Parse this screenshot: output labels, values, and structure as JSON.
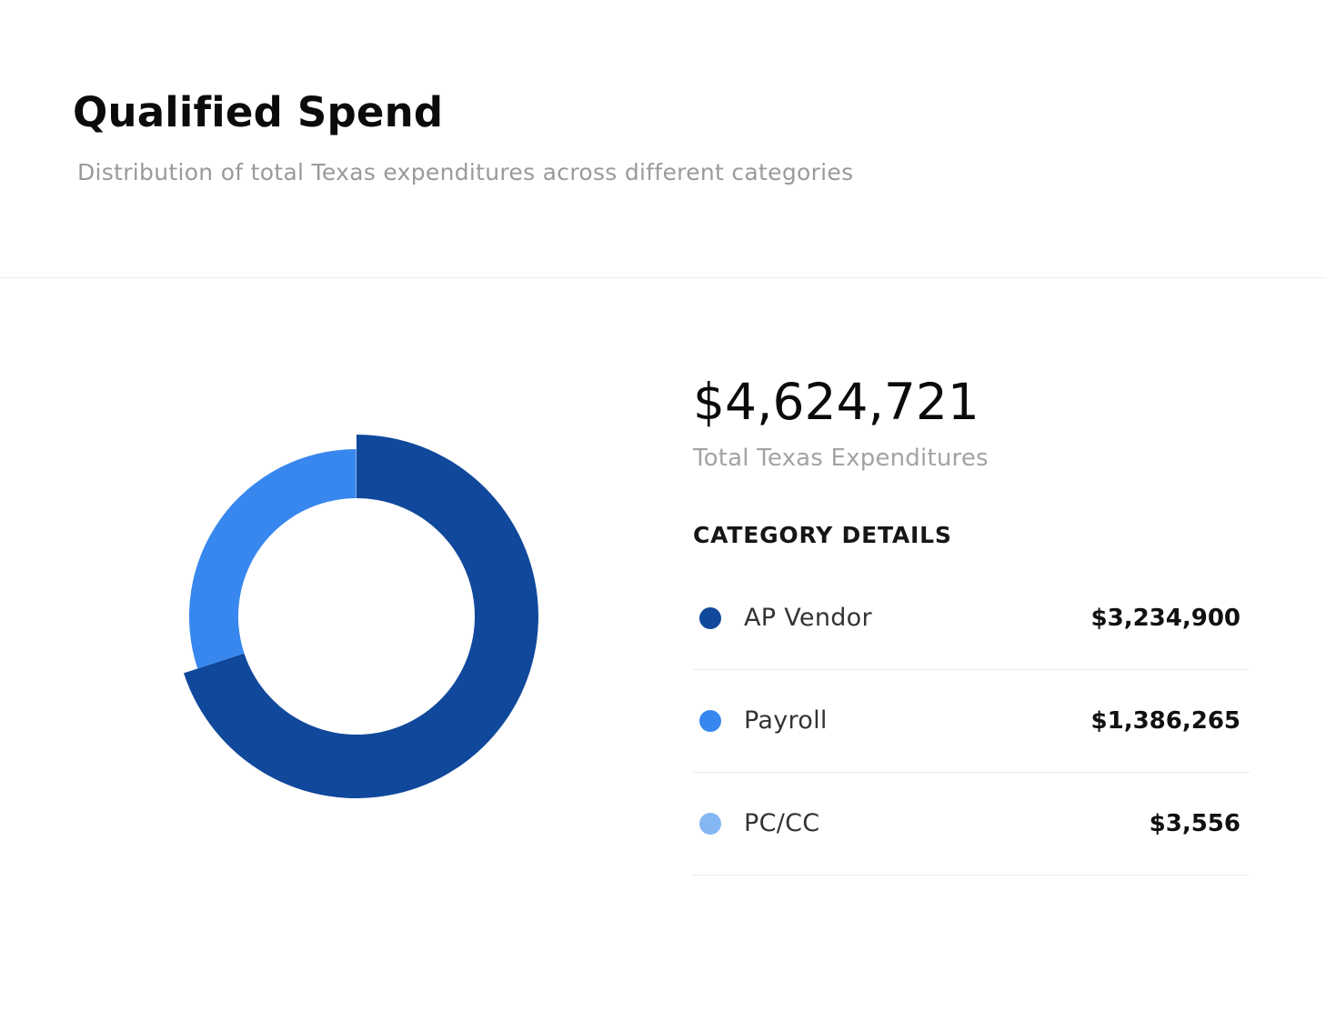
{
  "header": {
    "title": "Qualified Spend",
    "subtitle": "Distribution of total Texas expenditures across different categories"
  },
  "summary": {
    "total_amount": "$4,624,721",
    "total_label": "Total Texas Expenditures",
    "section_heading": "CATEGORY DETAILS"
  },
  "categories": [
    {
      "name": "AP Vendor",
      "value_label": "$3,234,900",
      "color": "#10489c"
    },
    {
      "name": "Payroll",
      "value_label": "$1,386,265",
      "color": "#3787ee"
    },
    {
      "name": "PC/CC",
      "value_label": "$3,556",
      "color": "#86b7f5"
    }
  ],
  "chart_data": {
    "type": "pie",
    "variant": "donut",
    "labels": [
      "AP Vendor",
      "Payroll",
      "PC/CC"
    ],
    "values": [
      3234900,
      1386265,
      3556
    ],
    "colors": [
      "#10489c",
      "#3787ee",
      "#86b7f5"
    ],
    "legend": "right",
    "start": "top",
    "direction": "clockwise",
    "segment_offset": "staggered"
  }
}
